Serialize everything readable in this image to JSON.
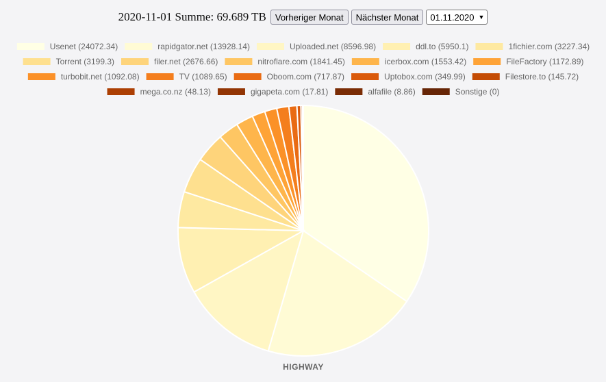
{
  "header": {
    "title": "2020-11-01 Summe: 69.689 TB",
    "prev_label": "Vorheriger Monat",
    "next_label": "Nächster Monat",
    "month_select_value": "01.11.2020"
  },
  "chart_data": {
    "type": "pie",
    "xlabel": "HIGHWAY",
    "legend_position": "top",
    "slices": [
      {
        "label": "Usenet (24072.34)",
        "value": 24072.34,
        "color": "#ffffe5"
      },
      {
        "label": "rapidgator.net (13928.14)",
        "value": 13928.14,
        "color": "#fffbd5"
      },
      {
        "label": "Uploaded.net (8596.98)",
        "value": 8596.98,
        "color": "#fff6c4"
      },
      {
        "label": "ddl.to (5950.1)",
        "value": 5950.1,
        "color": "#fff0b2"
      },
      {
        "label": "1fichier.com (3227.34)",
        "value": 3227.34,
        "color": "#fee9a1"
      },
      {
        "label": "Torrent (3199.3)",
        "value": 3199.3,
        "color": "#fee08f"
      },
      {
        "label": "filer.net (2676.66)",
        "value": 2676.66,
        "color": "#fed47b"
      },
      {
        "label": "nitroflare.com (1841.45)",
        "value": 1841.45,
        "color": "#fec663"
      },
      {
        "label": "icerbox.com (1553.42)",
        "value": 1553.42,
        "color": "#feb54b"
      },
      {
        "label": "FileFactory (1172.89)",
        "value": 1172.89,
        "color": "#fea337"
      },
      {
        "label": "turbobit.net (1092.08)",
        "value": 1092.08,
        "color": "#fb9128"
      },
      {
        "label": "TV (1089.65)",
        "value": 1089.65,
        "color": "#f47e1d"
      },
      {
        "label": "Oboom.com (717.87)",
        "value": 717.87,
        "color": "#e96b13"
      },
      {
        "label": "Uptobox.com (349.99)",
        "value": 349.99,
        "color": "#da5a0b"
      },
      {
        "label": "Filestore.to (145.72)",
        "value": 145.72,
        "color": "#c44c04"
      },
      {
        "label": "mega.co.nz (48.13)",
        "value": 48.13,
        "color": "#ac3f03"
      },
      {
        "label": "gigapeta.com (17.81)",
        "value": 17.81,
        "color": "#923504"
      },
      {
        "label": "alfafile (8.86)",
        "value": 8.86,
        "color": "#7a2c05"
      },
      {
        "label": "Sonstige (0)",
        "value": 0,
        "color": "#662506"
      }
    ]
  }
}
